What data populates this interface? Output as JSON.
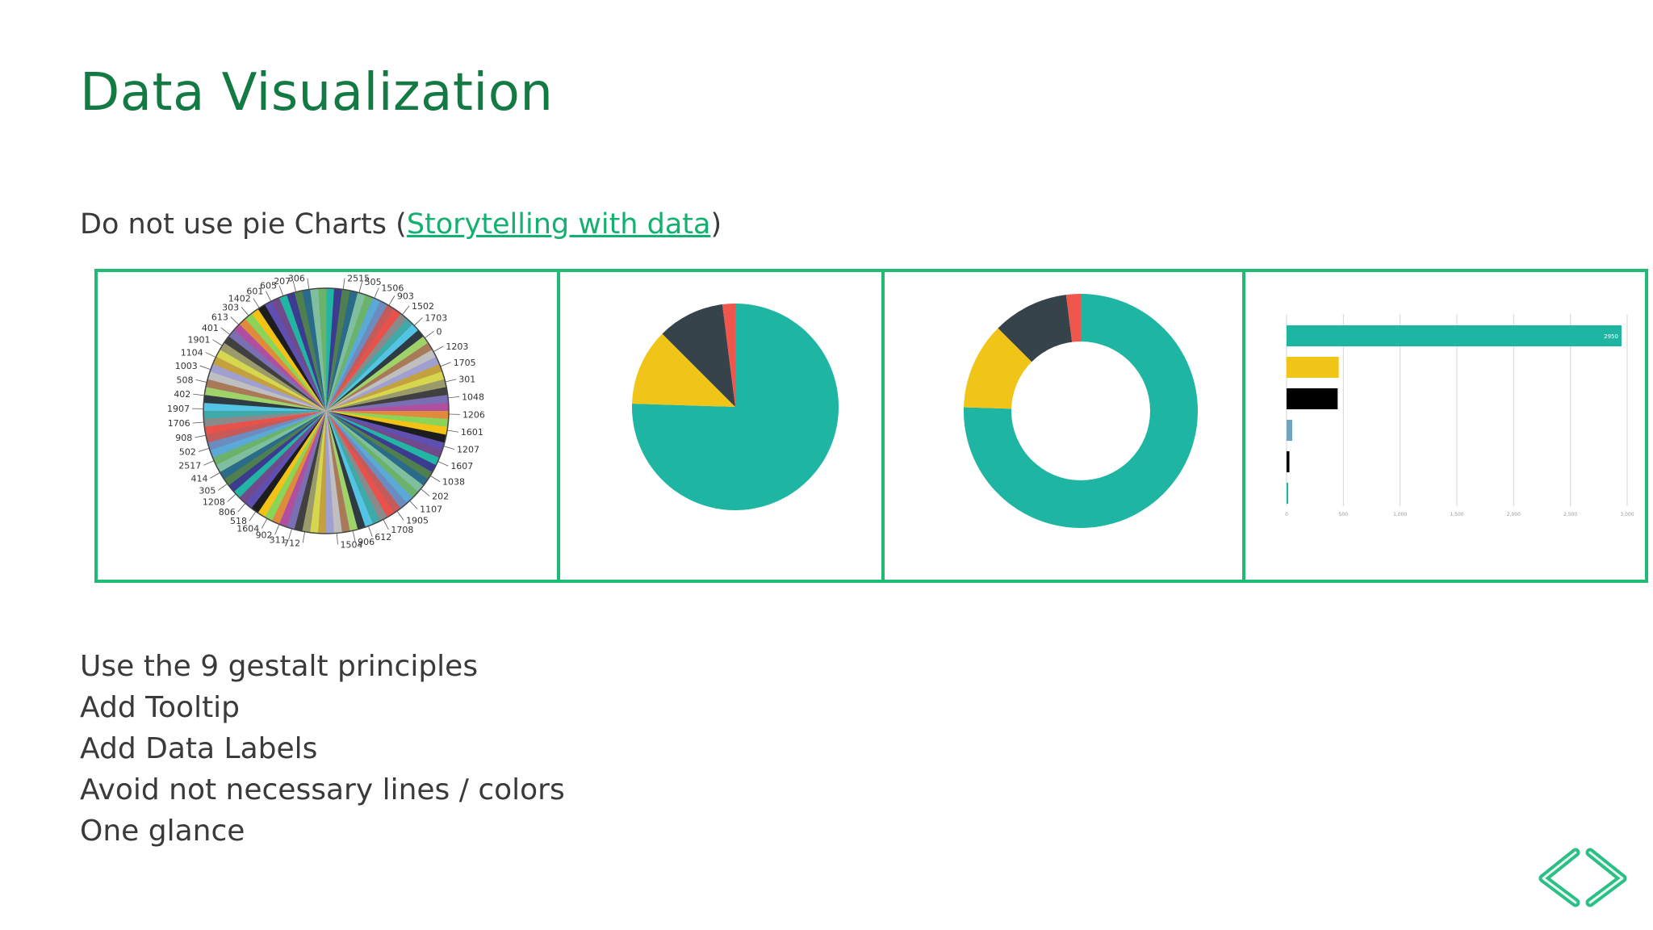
{
  "slide": {
    "title": "Data Visualization",
    "subtitle_prefix": "Do not use pie Charts  (",
    "subtitle_link": "Storytelling with data",
    "subtitle_suffix": ")",
    "bullets": [
      "Use the 9 gestalt principles",
      "Add Tooltip",
      "Add Data Labels",
      "Avoid not necessary lines / colors",
      "One glance"
    ]
  },
  "colors": {
    "title": "#127a42",
    "accent": "#1fba73",
    "link": "#13b06f",
    "teal": "#1eb5a2",
    "yellow": "#f1c518",
    "dark": "#36434a",
    "red": "#f0564c",
    "black": "#000000",
    "blue": "#6fa3c0"
  },
  "logo_icon": "code-brackets-icon",
  "chart_data": [
    {
      "type": "pie",
      "labels_right": [
        "2515",
        "505",
        "1506",
        "903",
        "1502",
        "1703",
        "0",
        "1203",
        "1705",
        "301",
        "1048",
        "1206",
        "1601",
        "1207",
        "1607",
        "1038",
        "202",
        "1107",
        "1905",
        "1708",
        "612",
        "906",
        "1504"
      ],
      "labels_left": [
        "306",
        "207",
        "605",
        "601",
        "1402",
        "303",
        "613",
        "401",
        "1901",
        "1104",
        "1003",
        "508",
        "402",
        "1907",
        "1706",
        "908",
        "502",
        "2517",
        "414",
        "305",
        "1208",
        "806",
        "518",
        "1604",
        "902",
        "311",
        "712"
      ]
    },
    {
      "type": "pie",
      "slices": [
        {
          "value": 75.5,
          "color": "#1eb5a2"
        },
        {
          "value": 12,
          "color": "#f1c518"
        },
        {
          "value": 10.5,
          "color": "#36434a"
        },
        {
          "value": 2,
          "color": "#f0564c"
        }
      ]
    },
    {
      "type": "pie",
      "donut": true,
      "slices": [
        {
          "value": 75.5,
          "color": "#1eb5a2"
        },
        {
          "value": 12,
          "color": "#f1c518"
        },
        {
          "value": 10.5,
          "color": "#36434a"
        },
        {
          "value": 2,
          "color": "#f0564c"
        }
      ]
    },
    {
      "type": "bar",
      "orientation": "horizontal",
      "values": [
        2950,
        460,
        450,
        50,
        25,
        8
      ],
      "colors": [
        "#1eb5a2",
        "#f1c518",
        "#000000",
        "#6fa3c0",
        "#000000",
        "#1eb5a2"
      ],
      "data_labels": [
        "2950",
        "",
        "",
        "",
        "",
        ""
      ],
      "xlim": [
        0,
        3000
      ],
      "xticks": [
        "0",
        "500",
        "1,000",
        "1,500",
        "2,000",
        "2,500",
        "3,000"
      ],
      "grid": true
    }
  ]
}
